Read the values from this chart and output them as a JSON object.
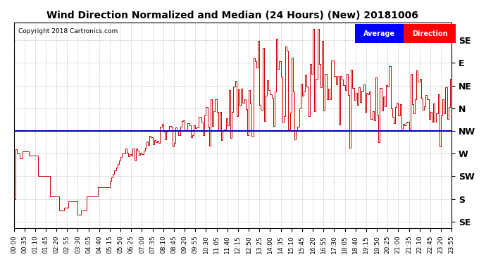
{
  "title": "Wind Direction Normalized and Median (24 Hours) (New) 20181006",
  "copyright_text": "Copyright 2018 Cartronics.com",
  "background_color": "#ffffff",
  "grid_color": "#bbbbbb",
  "title_fontsize": 10,
  "ytick_labels_right": [
    "SE",
    "E",
    "NE",
    "N",
    "NW",
    "W",
    "SW",
    "S",
    "SE"
  ],
  "ytick_values": [
    8,
    7,
    6,
    5,
    4,
    3,
    2,
    1,
    0
  ],
  "ylim": [
    -0.3,
    8.8
  ],
  "xlabel_fontsize": 6.5,
  "ylabel_fontsize": 9,
  "red_color": "#cc0000",
  "blue_color": "#0000bb",
  "avg_direction_value": 4.0,
  "num_points": 288
}
